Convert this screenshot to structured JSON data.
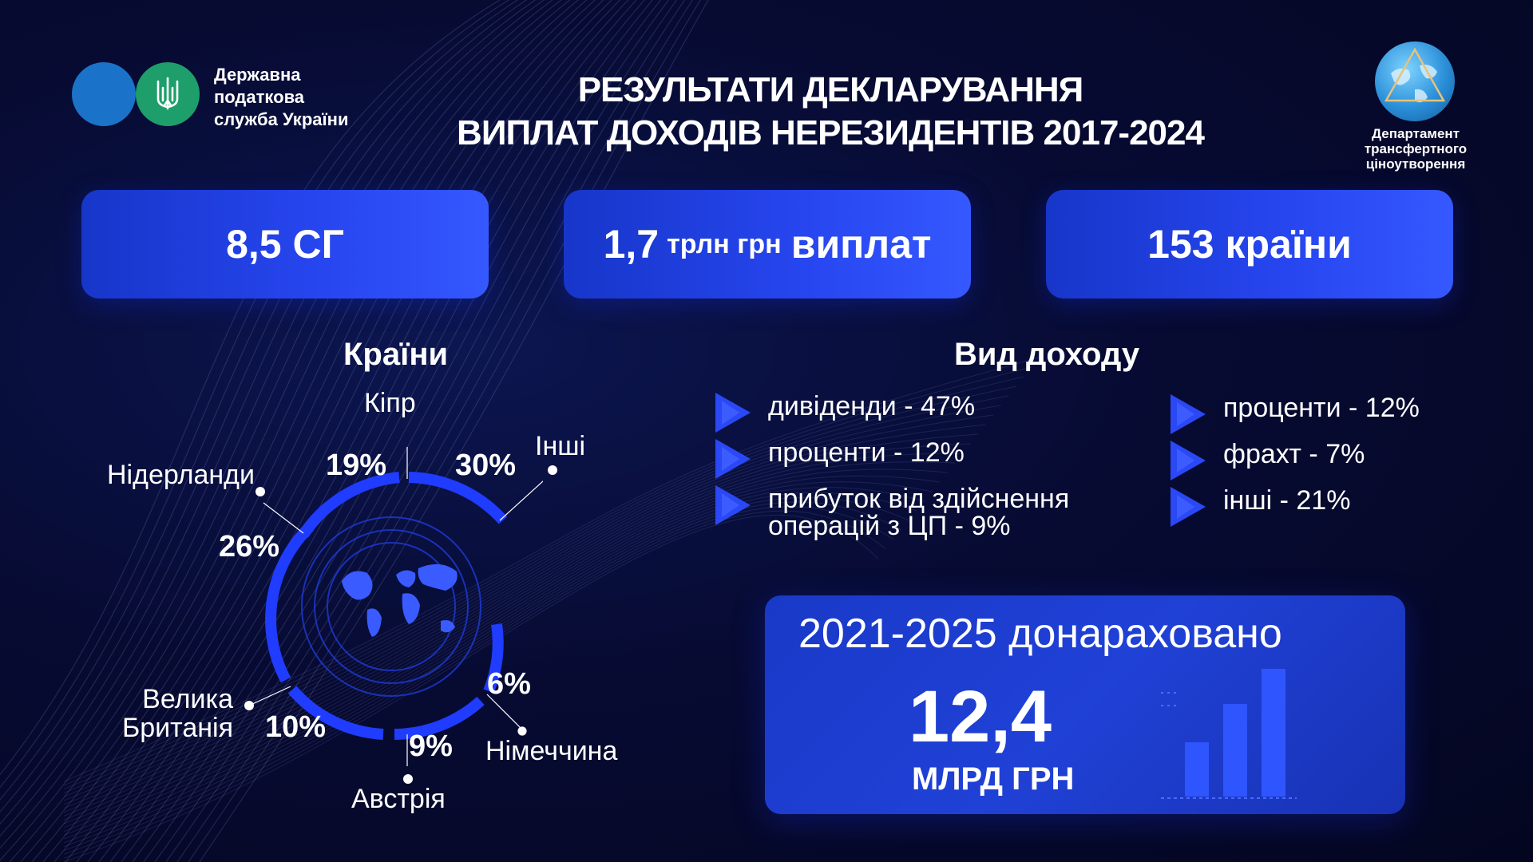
{
  "header": {
    "org_name": [
      "Державна",
      "податкова",
      "служба України"
    ],
    "title_line1": "РЕЗУЛЬТАТИ ДЕКЛАРУВАННЯ",
    "title_line2": "ВИПЛАТ ДОХОДІВ НЕРЕЗИДЕНТІВ 2017-2024",
    "dept_name": [
      "Департамент",
      "трансфертного",
      "ціноутворення"
    ]
  },
  "stats": {
    "sg": "8,5 СГ",
    "payments_value": "1,7",
    "payments_unit": "трлн грн",
    "payments_label": "виплат",
    "countries": "153 країни"
  },
  "countries_section": {
    "title": "Країни",
    "items": [
      {
        "label": "Кіпр",
        "pct": "19%"
      },
      {
        "label": "Інші",
        "pct": "30%"
      },
      {
        "label": "Нідерланди",
        "pct": "26%"
      },
      {
        "label": "Велика Британія",
        "label_lines": [
          "Велика",
          "Британія"
        ],
        "pct": "10%"
      },
      {
        "label": "Австрія",
        "pct": "9%"
      },
      {
        "label": "Німеччина",
        "pct": "6%"
      }
    ]
  },
  "income_section": {
    "title": "Вид доходу",
    "left": [
      "дивіденди - 47%",
      "проценти - 12%",
      [
        "прибуток від здійснення",
        "операцій з ЦП - 9%"
      ]
    ],
    "right": [
      "проценти - 12%",
      "фрахт - 7%",
      "інші - 21%"
    ]
  },
  "additional": {
    "title": "2021-2025 донараховано",
    "value": "12,4",
    "unit": "МЛРД ГРН"
  },
  "colors": {
    "accent": "#2746f0",
    "ring": "#1f3cff",
    "background": "#070b33"
  }
}
